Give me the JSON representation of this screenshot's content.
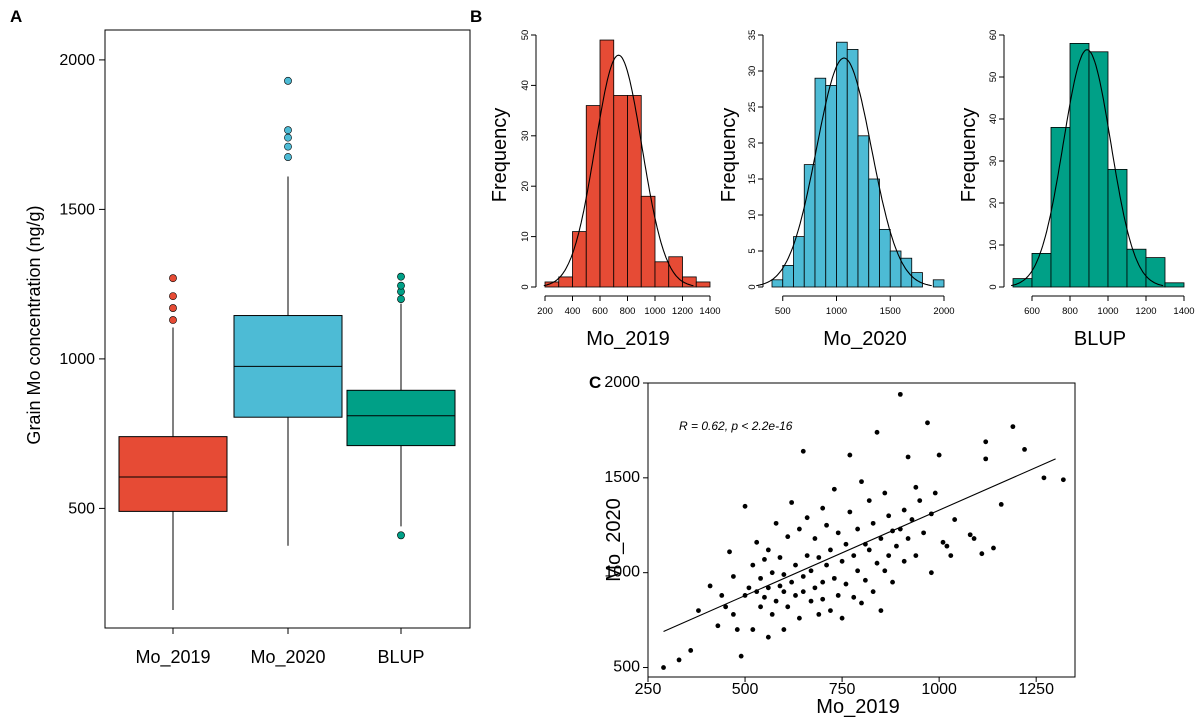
{
  "panels": {
    "a": "A",
    "b": "B",
    "c": "C"
  },
  "colors": {
    "mo2019": "#e64b35",
    "mo2020": "#4dbbd5",
    "blup": "#00a087",
    "ink": "#000000"
  },
  "chart_data": [
    {
      "id": "boxplot",
      "type": "box",
      "ylabel": "Grain Mo concentration (ng/g)",
      "ylim": [
        100,
        2100
      ],
      "yticks": [
        500,
        1000,
        1500,
        2000
      ],
      "tick_labels": [
        "500",
        "1000",
        "1500",
        "2000"
      ],
      "groups": [
        {
          "name": "Mo_2019",
          "color": "#e64b35",
          "min": 160,
          "q1": 490,
          "median": 605,
          "q3": 740,
          "max": 1105,
          "outliers": [
            1130,
            1170,
            1210,
            1270
          ]
        },
        {
          "name": "Mo_2020",
          "color": "#4dbbd5",
          "min": 375,
          "q1": 805,
          "median": 975,
          "q3": 1145,
          "max": 1610,
          "outliers": [
            1675,
            1710,
            1740,
            1765,
            1930
          ]
        },
        {
          "name": "BLUP",
          "color": "#00a087",
          "min": 440,
          "q1": 710,
          "median": 810,
          "q3": 895,
          "max": 1185,
          "outliers": [
            410,
            1200,
            1225,
            1245,
            1275
          ]
        }
      ]
    },
    {
      "id": "hist_mo2019",
      "type": "histogram",
      "xlabel": "Mo_2019",
      "ylabel": "Frequency",
      "color": "#e64b35",
      "bins": [
        200,
        300,
        400,
        500,
        600,
        700,
        800,
        900,
        1000,
        1100,
        1200,
        1300,
        1400
      ],
      "counts": [
        1,
        2,
        11,
        36,
        49,
        38,
        38,
        18,
        5,
        6,
        2,
        1
      ],
      "xlim": [
        200,
        1400
      ],
      "xticks": [
        200,
        400,
        600,
        800,
        1000,
        1200,
        1400
      ],
      "xtick_labels": [
        "200",
        "400",
        "600",
        "800",
        "1000",
        "1200",
        "1400"
      ],
      "ylim": [
        0,
        50
      ],
      "yticks": [
        0,
        10,
        20,
        30,
        40,
        50
      ],
      "ytick_labels": [
        "0",
        "10",
        "20",
        "30",
        "40",
        "50"
      ],
      "curve": {
        "mean": 735,
        "sd": 170,
        "peak": 46
      }
    },
    {
      "id": "hist_mo2020",
      "type": "histogram",
      "xlabel": "Mo_2020",
      "ylabel": "Frequency",
      "color": "#4dbbd5",
      "bins": [
        400,
        500,
        600,
        700,
        800,
        900,
        1000,
        1100,
        1200,
        1300,
        1400,
        1500,
        1600,
        1700,
        1800,
        1900,
        2000
      ],
      "counts": [
        1,
        3,
        7,
        17,
        29,
        28,
        34,
        33,
        21,
        15,
        8,
        5,
        4,
        2,
        0,
        1
      ],
      "xlim": [
        400,
        2000
      ],
      "xticks": [
        500,
        1000,
        1500,
        2000
      ],
      "xtick_labels": [
        "500",
        "1000",
        "1500",
        "2000"
      ],
      "ylim": [
        0,
        35
      ],
      "yticks": [
        0,
        5,
        10,
        15,
        20,
        25,
        30,
        35
      ],
      "ytick_labels": [
        "0",
        "5",
        "10",
        "15",
        "20",
        "25",
        "30",
        "35"
      ],
      "curve": {
        "mean": 1070,
        "sd": 255,
        "peak": 31.8
      }
    },
    {
      "id": "hist_blup",
      "type": "histogram",
      "xlabel": "BLUP",
      "ylabel": "Frequency",
      "color": "#00a087",
      "bins": [
        500,
        600,
        700,
        800,
        900,
        1000,
        1100,
        1200,
        1300,
        1400
      ],
      "counts": [
        2,
        8,
        38,
        58,
        56,
        28,
        9,
        7,
        1
      ],
      "xlim": [
        500,
        1400
      ],
      "xticks": [
        600,
        800,
        1000,
        1200,
        1400
      ],
      "xtick_labels": [
        "600",
        "800",
        "1000",
        "1200",
        "1400"
      ],
      "ylim": [
        0,
        60
      ],
      "yticks": [
        0,
        10,
        20,
        30,
        40,
        50,
        60
      ],
      "ytick_labels": [
        "0",
        "10",
        "20",
        "30",
        "40",
        "50",
        "60"
      ],
      "curve": {
        "mean": 890,
        "sd": 125,
        "peak": 56.5
      }
    },
    {
      "id": "scatter",
      "type": "scatter",
      "xlabel": "Mo_2019",
      "ylabel": "Mo_2020",
      "annotation": "R = 0.62, p < 2.2e-16",
      "xlim": [
        250,
        1350
      ],
      "xticks": [
        250,
        500,
        750,
        1000,
        1250
      ],
      "xtick_labels": [
        "250",
        "500",
        "750",
        "1000",
        "1250"
      ],
      "ylim": [
        450,
        2000
      ],
      "yticks": [
        500,
        1000,
        1500,
        2000
      ],
      "ytick_labels": [
        "500",
        "1000",
        "1500",
        "2000"
      ],
      "fit_line": {
        "x": [
          290,
          1300
        ],
        "y": [
          690,
          1600
        ]
      },
      "points": [
        [
          290,
          500
        ],
        [
          330,
          540
        ],
        [
          360,
          590
        ],
        [
          380,
          800
        ],
        [
          410,
          930
        ],
        [
          430,
          720
        ],
        [
          440,
          880
        ],
        [
          450,
          820
        ],
        [
          460,
          1110
        ],
        [
          470,
          980
        ],
        [
          470,
          780
        ],
        [
          480,
          700
        ],
        [
          490,
          560
        ],
        [
          500,
          880
        ],
        [
          500,
          1350
        ],
        [
          510,
          920
        ],
        [
          520,
          1040
        ],
        [
          520,
          700
        ],
        [
          530,
          900
        ],
        [
          530,
          1160
        ],
        [
          540,
          820
        ],
        [
          540,
          970
        ],
        [
          550,
          1070
        ],
        [
          550,
          870
        ],
        [
          560,
          1120
        ],
        [
          560,
          660
        ],
        [
          560,
          920
        ],
        [
          570,
          1000
        ],
        [
          570,
          780
        ],
        [
          580,
          850
        ],
        [
          580,
          1260
        ],
        [
          590,
          930
        ],
        [
          590,
          1080
        ],
        [
          600,
          700
        ],
        [
          600,
          990
        ],
        [
          600,
          900
        ],
        [
          610,
          1190
        ],
        [
          610,
          820
        ],
        [
          620,
          950
        ],
        [
          620,
          1370
        ],
        [
          630,
          1040
        ],
        [
          630,
          880
        ],
        [
          640,
          760
        ],
        [
          640,
          1230
        ],
        [
          650,
          1640
        ],
        [
          650,
          980
        ],
        [
          650,
          900
        ],
        [
          660,
          1090
        ],
        [
          660,
          1290
        ],
        [
          670,
          850
        ],
        [
          670,
          1010
        ],
        [
          680,
          1180
        ],
        [
          680,
          920
        ],
        [
          690,
          780
        ],
        [
          690,
          1080
        ],
        [
          700,
          1340
        ],
        [
          700,
          950
        ],
        [
          700,
          860
        ],
        [
          710,
          1250
        ],
        [
          710,
          1040
        ],
        [
          720,
          800
        ],
        [
          720,
          1120
        ],
        [
          730,
          970
        ],
        [
          730,
          1440
        ],
        [
          740,
          880
        ],
        [
          740,
          1210
        ],
        [
          750,
          1060
        ],
        [
          750,
          760
        ],
        [
          760,
          1150
        ],
        [
          760,
          940
        ],
        [
          770,
          1620
        ],
        [
          770,
          1320
        ],
        [
          780,
          870
        ],
        [
          780,
          1090
        ],
        [
          790,
          1230
        ],
        [
          790,
          1010
        ],
        [
          800,
          1480
        ],
        [
          800,
          840
        ],
        [
          810,
          1150
        ],
        [
          810,
          960
        ],
        [
          820,
          1380
        ],
        [
          820,
          1120
        ],
        [
          830,
          900
        ],
        [
          830,
          1260
        ],
        [
          840,
          1740
        ],
        [
          840,
          1050
        ],
        [
          850,
          1180
        ],
        [
          850,
          800
        ],
        [
          860,
          1420
        ],
        [
          860,
          1010
        ],
        [
          870,
          1300
        ],
        [
          870,
          1090
        ],
        [
          880,
          1220
        ],
        [
          880,
          950
        ],
        [
          890,
          1140
        ],
        [
          900,
          1940
        ],
        [
          900,
          1230
        ],
        [
          910,
          1330
        ],
        [
          910,
          1060
        ],
        [
          920,
          1610
        ],
        [
          920,
          1180
        ],
        [
          930,
          1280
        ],
        [
          940,
          1090
        ],
        [
          940,
          1450
        ],
        [
          950,
          1380
        ],
        [
          960,
          1210
        ],
        [
          970,
          1790
        ],
        [
          980,
          1000
        ],
        [
          980,
          1310
        ],
        [
          990,
          1420
        ],
        [
          1000,
          1620
        ],
        [
          1010,
          1160
        ],
        [
          1020,
          1140
        ],
        [
          1030,
          1090
        ],
        [
          1040,
          1280
        ],
        [
          1080,
          1200
        ],
        [
          1090,
          1180
        ],
        [
          1110,
          1100
        ],
        [
          1120,
          1690
        ],
        [
          1120,
          1600
        ],
        [
          1140,
          1130
        ],
        [
          1160,
          1360
        ],
        [
          1190,
          1770
        ],
        [
          1220,
          1650
        ],
        [
          1270,
          1500
        ],
        [
          1320,
          1490
        ]
      ]
    }
  ]
}
